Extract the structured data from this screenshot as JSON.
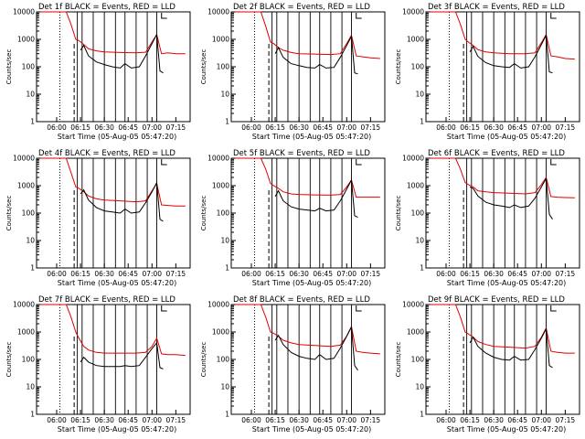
{
  "shared": {
    "xlabel": "Start Time (05-Aug-05 05:47:20)",
    "ylabel": "Counts/sec",
    "xticks": [
      "06:00",
      "06:15",
      "06:30",
      "06:45",
      "07:00",
      "07:15"
    ],
    "yticks": [
      "1",
      "10",
      "100",
      "1000",
      "10000"
    ],
    "colors": {
      "events": "#000000",
      "lld": "#e00000"
    }
  },
  "chart_data": [
    {
      "type": "line",
      "title": "Det 1f  BLACK = Events, RED = LLD",
      "xlabel": "Start Time (05-Aug-05 05:47:20)",
      "ylabel": "Counts/sec",
      "xlim": [
        "05:47:20",
        "07:24"
      ],
      "ylim": [
        1,
        10000
      ],
      "yscale": "log",
      "series": [
        {
          "x": [
            "05:50",
            "05:54",
            "06:00",
            "06:06",
            "06:09",
            "06:12",
            "06:14",
            "06:17",
            "06:20",
            "06:25",
            "06:30",
            "06:40",
            "06:50",
            "06:56",
            "07:00",
            "07:03",
            "07:06",
            "07:10",
            "07:15",
            "07:21"
          ],
          "values": [
            10000,
            10000,
            10000,
            10000,
            3500,
            1000,
            900,
            650,
            450,
            380,
            350,
            330,
            320,
            340,
            800,
            1500,
            300,
            320,
            300,
            300
          ]
        },
        {
          "x": [
            "06:15",
            "06:17",
            "06:20",
            "06:25",
            "06:30",
            "06:35",
            "06:40",
            "06:43",
            "06:47",
            "06:52",
            "06:56",
            "07:00",
            "07:03",
            "07:05",
            "07:07"
          ],
          "values": [
            400,
            600,
            250,
            150,
            120,
            100,
            90,
            130,
            90,
            100,
            250,
            700,
            1500,
            70,
            60
          ]
        }
      ]
    },
    {
      "type": "line",
      "title": "Det 2f  BLACK = Events, RED = LLD",
      "xlabel": "Start Time (05-Aug-05 05:47:20)",
      "ylabel": "Counts/sec",
      "xlim": [
        "05:47:20",
        "07:24"
      ],
      "ylim": [
        1,
        10000
      ],
      "yscale": "log",
      "series": [
        {
          "x": [
            "05:50",
            "05:54",
            "06:00",
            "06:06",
            "06:09",
            "06:12",
            "06:14",
            "06:17",
            "06:20",
            "06:25",
            "06:30",
            "06:40",
            "06:50",
            "06:56",
            "07:00",
            "07:03",
            "07:06",
            "07:10",
            "07:15",
            "07:21"
          ],
          "values": [
            10000,
            10000,
            10000,
            10000,
            3000,
            800,
            700,
            500,
            400,
            330,
            300,
            290,
            280,
            300,
            700,
            1400,
            250,
            230,
            210,
            200
          ]
        },
        {
          "x": [
            "06:15",
            "06:17",
            "06:20",
            "06:25",
            "06:30",
            "06:35",
            "06:40",
            "06:43",
            "06:47",
            "06:52",
            "06:56",
            "07:00",
            "07:03",
            "07:05",
            "07:07"
          ],
          "values": [
            300,
            500,
            220,
            130,
            110,
            95,
            90,
            120,
            90,
            95,
            220,
            600,
            1300,
            60,
            55
          ]
        }
      ]
    },
    {
      "type": "line",
      "title": "Det 3f  BLACK = Events, RED = LLD",
      "xlabel": "Start Time (05-Aug-05 05:47:20)",
      "ylabel": "Counts/sec",
      "xlim": [
        "05:47:20",
        "07:24"
      ],
      "ylim": [
        1,
        10000
      ],
      "yscale": "log",
      "series": [
        {
          "x": [
            "05:50",
            "05:54",
            "06:00",
            "06:06",
            "06:09",
            "06:12",
            "06:14",
            "06:17",
            "06:20",
            "06:25",
            "06:30",
            "06:40",
            "06:50",
            "06:56",
            "07:00",
            "07:03",
            "07:06",
            "07:10",
            "07:15",
            "07:21"
          ],
          "values": [
            10000,
            10000,
            10000,
            10000,
            3500,
            1000,
            800,
            600,
            420,
            350,
            320,
            300,
            300,
            320,
            750,
            1500,
            250,
            230,
            200,
            190
          ]
        },
        {
          "x": [
            "06:15",
            "06:17",
            "06:20",
            "06:25",
            "06:30",
            "06:35",
            "06:40",
            "06:43",
            "06:47",
            "06:52",
            "06:56",
            "07:00",
            "07:03",
            "07:05",
            "07:07"
          ],
          "values": [
            350,
            550,
            240,
            140,
            110,
            100,
            95,
            130,
            90,
            100,
            230,
            650,
            1400,
            65,
            60
          ]
        }
      ]
    },
    {
      "type": "line",
      "title": "Det 4f  BLACK = Events, RED = LLD",
      "xlabel": "Start Time (05-Aug-05 05:47:20)",
      "ylabel": "Counts/sec",
      "xlim": [
        "05:47:20",
        "07:24"
      ],
      "ylim": [
        1,
        10000
      ],
      "yscale": "log",
      "series": [
        {
          "x": [
            "05:50",
            "05:54",
            "06:00",
            "06:06",
            "06:09",
            "06:12",
            "06:14",
            "06:17",
            "06:20",
            "06:25",
            "06:30",
            "06:40",
            "06:50",
            "06:56",
            "07:00",
            "07:03",
            "07:06",
            "07:10",
            "07:15",
            "07:21"
          ],
          "values": [
            10000,
            10000,
            10000,
            10000,
            3000,
            900,
            800,
            600,
            420,
            330,
            300,
            280,
            260,
            280,
            650,
            1200,
            200,
            190,
            180,
            180
          ]
        },
        {
          "x": [
            "06:15",
            "06:17",
            "06:20",
            "06:25",
            "06:30",
            "06:35",
            "06:40",
            "06:43",
            "06:47",
            "06:52",
            "06:56",
            "07:00",
            "07:03",
            "07:05",
            "07:07"
          ],
          "values": [
            500,
            700,
            300,
            160,
            120,
            110,
            100,
            140,
            100,
            110,
            240,
            600,
            1300,
            60,
            50
          ]
        }
      ]
    },
    {
      "type": "line",
      "title": "Det 5f  BLACK = Events, RED = LLD",
      "xlabel": "Start Time (05-Aug-05 05:47:20)",
      "ylabel": "Counts/sec",
      "xlim": [
        "05:47:20",
        "07:24"
      ],
      "ylim": [
        1,
        10000
      ],
      "yscale": "log",
      "series": [
        {
          "x": [
            "05:50",
            "05:54",
            "06:00",
            "06:06",
            "06:09",
            "06:12",
            "06:14",
            "06:17",
            "06:20",
            "06:25",
            "06:30",
            "06:40",
            "06:50",
            "06:56",
            "07:00",
            "07:03",
            "07:06",
            "07:10",
            "07:15",
            "07:21"
          ],
          "values": [
            10000,
            10000,
            10000,
            10000,
            4000,
            1200,
            1000,
            800,
            600,
            500,
            480,
            460,
            450,
            480,
            900,
            1600,
            380,
            380,
            380,
            380
          ]
        },
        {
          "x": [
            "06:15",
            "06:17",
            "06:20",
            "06:25",
            "06:30",
            "06:35",
            "06:40",
            "06:43",
            "06:47",
            "06:52",
            "06:56",
            "07:00",
            "07:03",
            "07:05",
            "07:07"
          ],
          "values": [
            400,
            650,
            280,
            170,
            140,
            130,
            120,
            150,
            120,
            130,
            280,
            750,
            1600,
            80,
            70
          ]
        }
      ]
    },
    {
      "type": "line",
      "title": "Det 6f  BLACK = Events, RED = LLD",
      "xlabel": "Start Time (05-Aug-05 05:47:20)",
      "ylabel": "Counts/sec",
      "xlim": [
        "05:47:20",
        "07:24"
      ],
      "ylim": [
        1,
        10000
      ],
      "yscale": "log",
      "series": [
        {
          "x": [
            "05:50",
            "05:54",
            "06:00",
            "06:06",
            "06:09",
            "06:12",
            "06:14",
            "06:17",
            "06:20",
            "06:25",
            "06:30",
            "06:40",
            "06:50",
            "06:56",
            "07:00",
            "07:03",
            "07:06",
            "07:10",
            "07:15",
            "07:21"
          ],
          "values": [
            10000,
            10000,
            10000,
            10000,
            4000,
            1300,
            1100,
            900,
            650,
            600,
            560,
            530,
            500,
            560,
            1100,
            2000,
            400,
            380,
            370,
            360
          ]
        },
        {
          "x": [
            "06:15",
            "06:17",
            "06:20",
            "06:25",
            "06:30",
            "06:35",
            "06:40",
            "06:43",
            "06:47",
            "06:52",
            "06:56",
            "07:00",
            "07:03",
            "07:05",
            "07:07"
          ],
          "values": [
            900,
            800,
            420,
            250,
            200,
            180,
            160,
            200,
            160,
            180,
            350,
            900,
            1800,
            90,
            60
          ]
        }
      ]
    },
    {
      "type": "line",
      "title": "Det 7f  BLACK = Events, RED = LLD",
      "xlabel": "Start Time (05-Aug-05 05:47:20)",
      "ylabel": "Counts/sec",
      "xlim": [
        "05:47:20",
        "07:24"
      ],
      "ylim": [
        1,
        10000
      ],
      "yscale": "log",
      "series": [
        {
          "x": [
            "05:50",
            "05:54",
            "06:00",
            "06:06",
            "06:09",
            "06:12",
            "06:14",
            "06:17",
            "06:20",
            "06:25",
            "06:30",
            "06:40",
            "06:50",
            "06:56",
            "07:00",
            "07:03",
            "07:06",
            "07:10",
            "07:15",
            "07:21"
          ],
          "values": [
            10000,
            10000,
            10000,
            10000,
            3500,
            1000,
            600,
            300,
            220,
            180,
            170,
            170,
            170,
            180,
            300,
            600,
            160,
            150,
            150,
            140
          ]
        },
        {
          "x": [
            "06:15",
            "06:17",
            "06:20",
            "06:25",
            "06:30",
            "06:35",
            "06:40",
            "06:43",
            "06:47",
            "06:52",
            "06:56",
            "07:00",
            "07:03",
            "07:05",
            "07:07"
          ],
          "values": [
            80,
            120,
            80,
            60,
            55,
            55,
            55,
            60,
            55,
            60,
            120,
            250,
            400,
            50,
            45
          ]
        }
      ]
    },
    {
      "type": "line",
      "title": "Det 8f  BLACK = Events, RED = LLD",
      "xlabel": "Start Time (05-Aug-05 05:47:20)",
      "ylabel": "Counts/sec",
      "xlim": [
        "05:47:20",
        "07:24"
      ],
      "ylim": [
        1,
        10000
      ],
      "yscale": "log",
      "series": [
        {
          "x": [
            "05:50",
            "05:54",
            "06:00",
            "06:06",
            "06:09",
            "06:12",
            "06:14",
            "06:17",
            "06:20",
            "06:25",
            "06:30",
            "06:40",
            "06:50",
            "06:56",
            "07:00",
            "07:03",
            "07:06",
            "07:10",
            "07:15",
            "07:21"
          ],
          "values": [
            10000,
            10000,
            10000,
            10000,
            3500,
            1000,
            900,
            700,
            500,
            400,
            350,
            320,
            300,
            330,
            700,
            1600,
            200,
            180,
            170,
            160
          ]
        },
        {
          "x": [
            "06:15",
            "06:17",
            "06:20",
            "06:25",
            "06:30",
            "06:35",
            "06:40",
            "06:43",
            "06:47",
            "06:52",
            "06:56",
            "07:00",
            "07:03",
            "07:05",
            "07:07"
          ],
          "values": [
            500,
            750,
            350,
            180,
            130,
            110,
            100,
            150,
            100,
            110,
            260,
            700,
            1500,
            60,
            40
          ]
        }
      ]
    },
    {
      "type": "line",
      "title": "Det 9f  BLACK = Events, RED = LLD",
      "xlabel": "Start Time (05-Aug-05 05:47:20)",
      "ylabel": "Counts/sec",
      "xlim": [
        "05:47:20",
        "07:24"
      ],
      "ylim": [
        1,
        10000
      ],
      "yscale": "log",
      "series": [
        {
          "x": [
            "05:50",
            "05:54",
            "06:00",
            "06:06",
            "06:09",
            "06:12",
            "06:14",
            "06:17",
            "06:20",
            "06:25",
            "06:30",
            "06:40",
            "06:50",
            "06:56",
            "07:00",
            "07:03",
            "07:06",
            "07:10",
            "07:15",
            "07:21"
          ],
          "values": [
            10000,
            10000,
            10000,
            10000,
            3500,
            1000,
            850,
            650,
            450,
            350,
            300,
            280,
            260,
            300,
            650,
            1400,
            200,
            180,
            170,
            170
          ]
        },
        {
          "x": [
            "06:15",
            "06:17",
            "06:20",
            "06:25",
            "06:30",
            "06:35",
            "06:40",
            "06:43",
            "06:47",
            "06:52",
            "06:56",
            "07:00",
            "07:03",
            "07:05",
            "07:07"
          ],
          "values": [
            400,
            650,
            300,
            170,
            120,
            100,
            95,
            130,
            95,
            100,
            230,
            600,
            1300,
            60,
            50
          ]
        }
      ]
    }
  ]
}
